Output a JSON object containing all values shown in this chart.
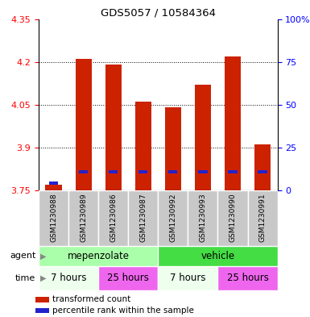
{
  "title": "GDS5057 / 10584364",
  "samples": [
    "GSM1230988",
    "GSM1230989",
    "GSM1230986",
    "GSM1230987",
    "GSM1230992",
    "GSM1230993",
    "GSM1230990",
    "GSM1230991"
  ],
  "transformed_counts": [
    3.77,
    4.21,
    4.19,
    4.06,
    4.04,
    4.12,
    4.22,
    3.91
  ],
  "percentile_values": [
    3.776,
    3.814,
    3.814,
    3.814,
    3.814,
    3.814,
    3.814,
    3.814
  ],
  "bar_bottom": 3.75,
  "ylim_left": [
    3.75,
    4.35
  ],
  "ylim_right": [
    0,
    100
  ],
  "yticks_left": [
    3.75,
    3.9,
    4.05,
    4.2,
    4.35
  ],
  "yticks_right": [
    0,
    25,
    50,
    75,
    100
  ],
  "ytick_labels_left": [
    "3.75",
    "3.9",
    "4.05",
    "4.2",
    "4.35"
  ],
  "ytick_labels_right": [
    "0",
    "25",
    "50",
    "75",
    "100%"
  ],
  "agent_groups": [
    {
      "label": "mepenzolate",
      "start": 0,
      "end": 4,
      "color": "#AAFFAA"
    },
    {
      "label": "vehicle",
      "start": 4,
      "end": 8,
      "color": "#44DD44"
    }
  ],
  "time_groups": [
    {
      "label": "7 hours",
      "start": 0,
      "end": 2,
      "color": "#EEFFEE"
    },
    {
      "label": "25 hours",
      "start": 2,
      "end": 4,
      "color": "#EE66EE"
    },
    {
      "label": "7 hours",
      "start": 4,
      "end": 6,
      "color": "#EEFFEE"
    },
    {
      "label": "25 hours",
      "start": 6,
      "end": 8,
      "color": "#EE66EE"
    }
  ],
  "bar_color": "#CC2200",
  "percentile_color": "#2222CC",
  "legend_items": [
    {
      "color": "#CC2200",
      "label": "transformed count"
    },
    {
      "color": "#2222CC",
      "label": "percentile rank within the sample"
    }
  ],
  "plot_bg_color": "#FFFFFF",
  "sample_bg_color": "#C8C8C8",
  "sample_divider_color": "#FFFFFF"
}
